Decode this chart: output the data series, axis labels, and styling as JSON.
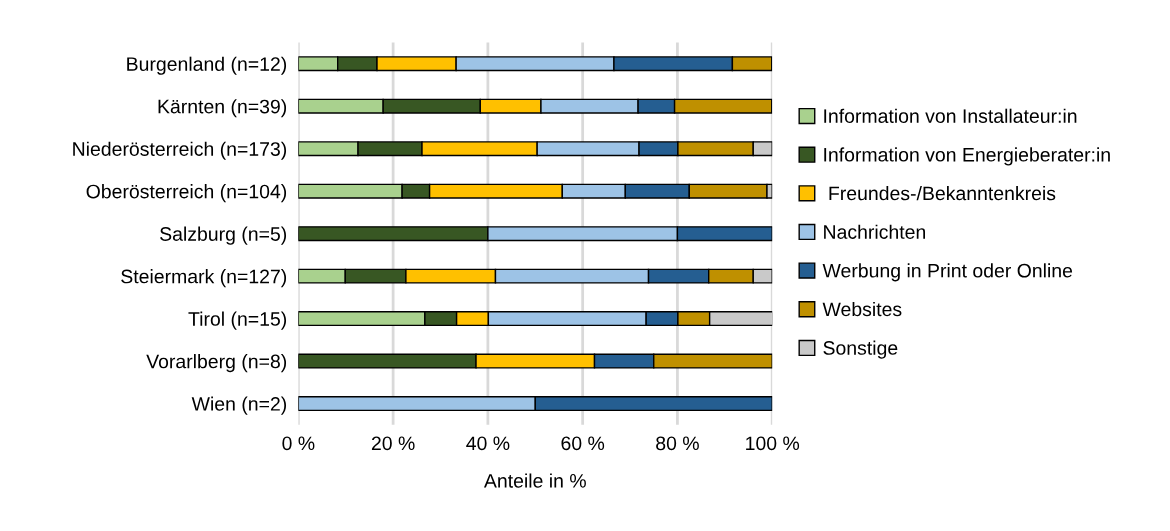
{
  "chart_data": {
    "type": "bar",
    "orientation": "horizontal",
    "stacked": true,
    "xlabel": "Anteile in %",
    "categories": [
      "Burgenland (n=12)",
      "Kärnten (n=39)",
      "Niederösterreich (n=173)",
      "Oberösterreich (n=104)",
      "Salzburg (n=5)",
      "Steiermark (n=127)",
      "Tirol (n=15)",
      "Vorarlberg (n=8)",
      "Wien (n=2)"
    ],
    "series": [
      {
        "name": "Information von Installateur:in",
        "color": "#a9d18e",
        "values": [
          8.3,
          17.9,
          12.6,
          21.9,
          0,
          9.9,
          26.7,
          0,
          0
        ]
      },
      {
        "name": "Information von Energieberater:in",
        "color": "#385723",
        "values": [
          8.3,
          20.5,
          13.5,
          5.8,
          40,
          12.8,
          6.7,
          37.5,
          0
        ]
      },
      {
        "name": " Freundes-/Bekanntenkreis",
        "color": "#ffc000",
        "values": [
          16.7,
          12.8,
          24.3,
          28.0,
          0,
          18.9,
          6.7,
          25,
          0
        ]
      },
      {
        "name": "Nachrichten",
        "color": "#9dc3e6",
        "values": [
          33.3,
          20.5,
          21.5,
          13.3,
          40,
          32.3,
          33.3,
          0,
          50
        ]
      },
      {
        "name": "Werbung in Print oder Online",
        "color": "#255e91",
        "values": [
          25,
          7.7,
          8.2,
          13.5,
          20,
          12.7,
          6.7,
          12.5,
          50
        ]
      },
      {
        "name": "Websites",
        "color": "#bf9000",
        "values": [
          8.3,
          20.5,
          15.9,
          16.4,
          0,
          9.4,
          6.7,
          25,
          0
        ]
      },
      {
        "name": "Sonstige",
        "color": "#c9c9c9",
        "values": [
          0,
          0,
          4.0,
          1.1,
          0,
          4.0,
          13.3,
          0,
          0
        ]
      }
    ],
    "xlim": [
      0,
      100
    ],
    "xticks": [
      {
        "value": 0,
        "label": "0 %"
      },
      {
        "value": 20,
        "label": "20 %"
      },
      {
        "value": 40,
        "label": "40 %"
      },
      {
        "value": 60,
        "label": "60 %"
      },
      {
        "value": 80,
        "label": "80 %"
      },
      {
        "value": 100,
        "label": "100 %"
      }
    ],
    "grid": "x",
    "legend": "right"
  }
}
